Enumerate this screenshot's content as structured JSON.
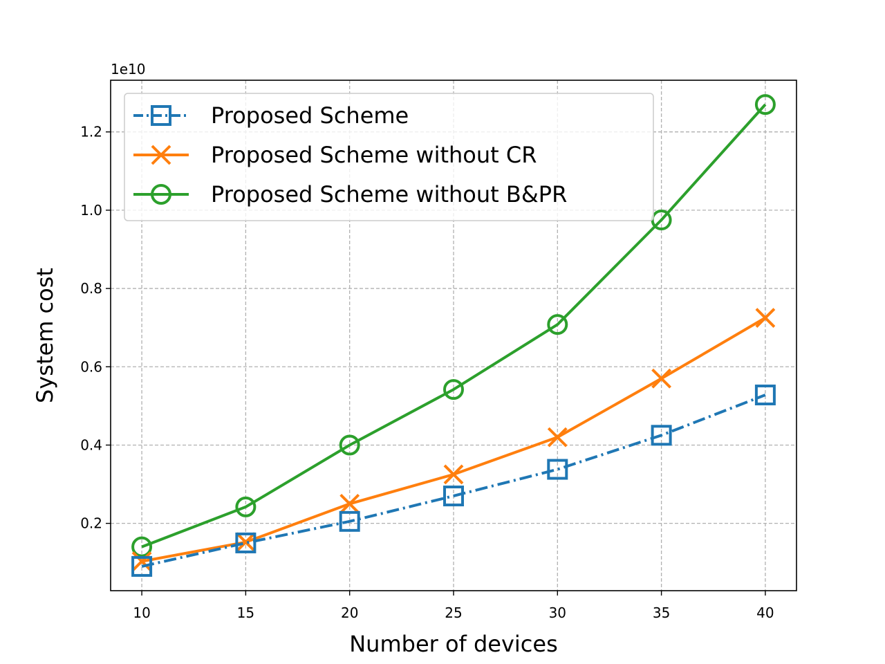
{
  "chart_data": {
    "type": "line",
    "title": "",
    "xlabel": "Number of devices",
    "ylabel": "System cost",
    "y_offset_label": "1e10",
    "x": [
      10,
      15,
      20,
      25,
      30,
      35,
      40
    ],
    "x_ticks": [
      10,
      15,
      20,
      25,
      30,
      35,
      40
    ],
    "x_tick_labels": [
      "10",
      "15",
      "20",
      "25",
      "30",
      "35",
      "40"
    ],
    "y_ticks": [
      0.2,
      0.4,
      0.6,
      0.8,
      1.0,
      1.2
    ],
    "y_tick_labels": [
      "0.2",
      "0.4",
      "0.6",
      "0.8",
      "1.0",
      "1.2"
    ],
    "xlim": [
      8.5,
      41.5
    ],
    "ylim": [
      0.028,
      1.332
    ],
    "grid": true,
    "legend_position": "top-left",
    "series": [
      {
        "name": "Proposed Scheme",
        "color": "#1f77b4",
        "marker": "square",
        "linestyle": "dash-dot",
        "values": [
          0.09,
          0.15,
          0.205,
          0.27,
          0.338,
          0.425,
          0.528
        ]
      },
      {
        "name": "Proposed Scheme without CR",
        "color": "#ff7f0e",
        "marker": "x",
        "linestyle": "solid",
        "values": [
          0.103,
          0.152,
          0.25,
          0.325,
          0.42,
          0.57,
          0.725
        ]
      },
      {
        "name": "Proposed Scheme without B&PR",
        "color": "#2ca02c",
        "marker": "circle",
        "linestyle": "solid",
        "values": [
          0.14,
          0.242,
          0.4,
          0.542,
          0.708,
          0.975,
          1.27
        ]
      }
    ]
  }
}
